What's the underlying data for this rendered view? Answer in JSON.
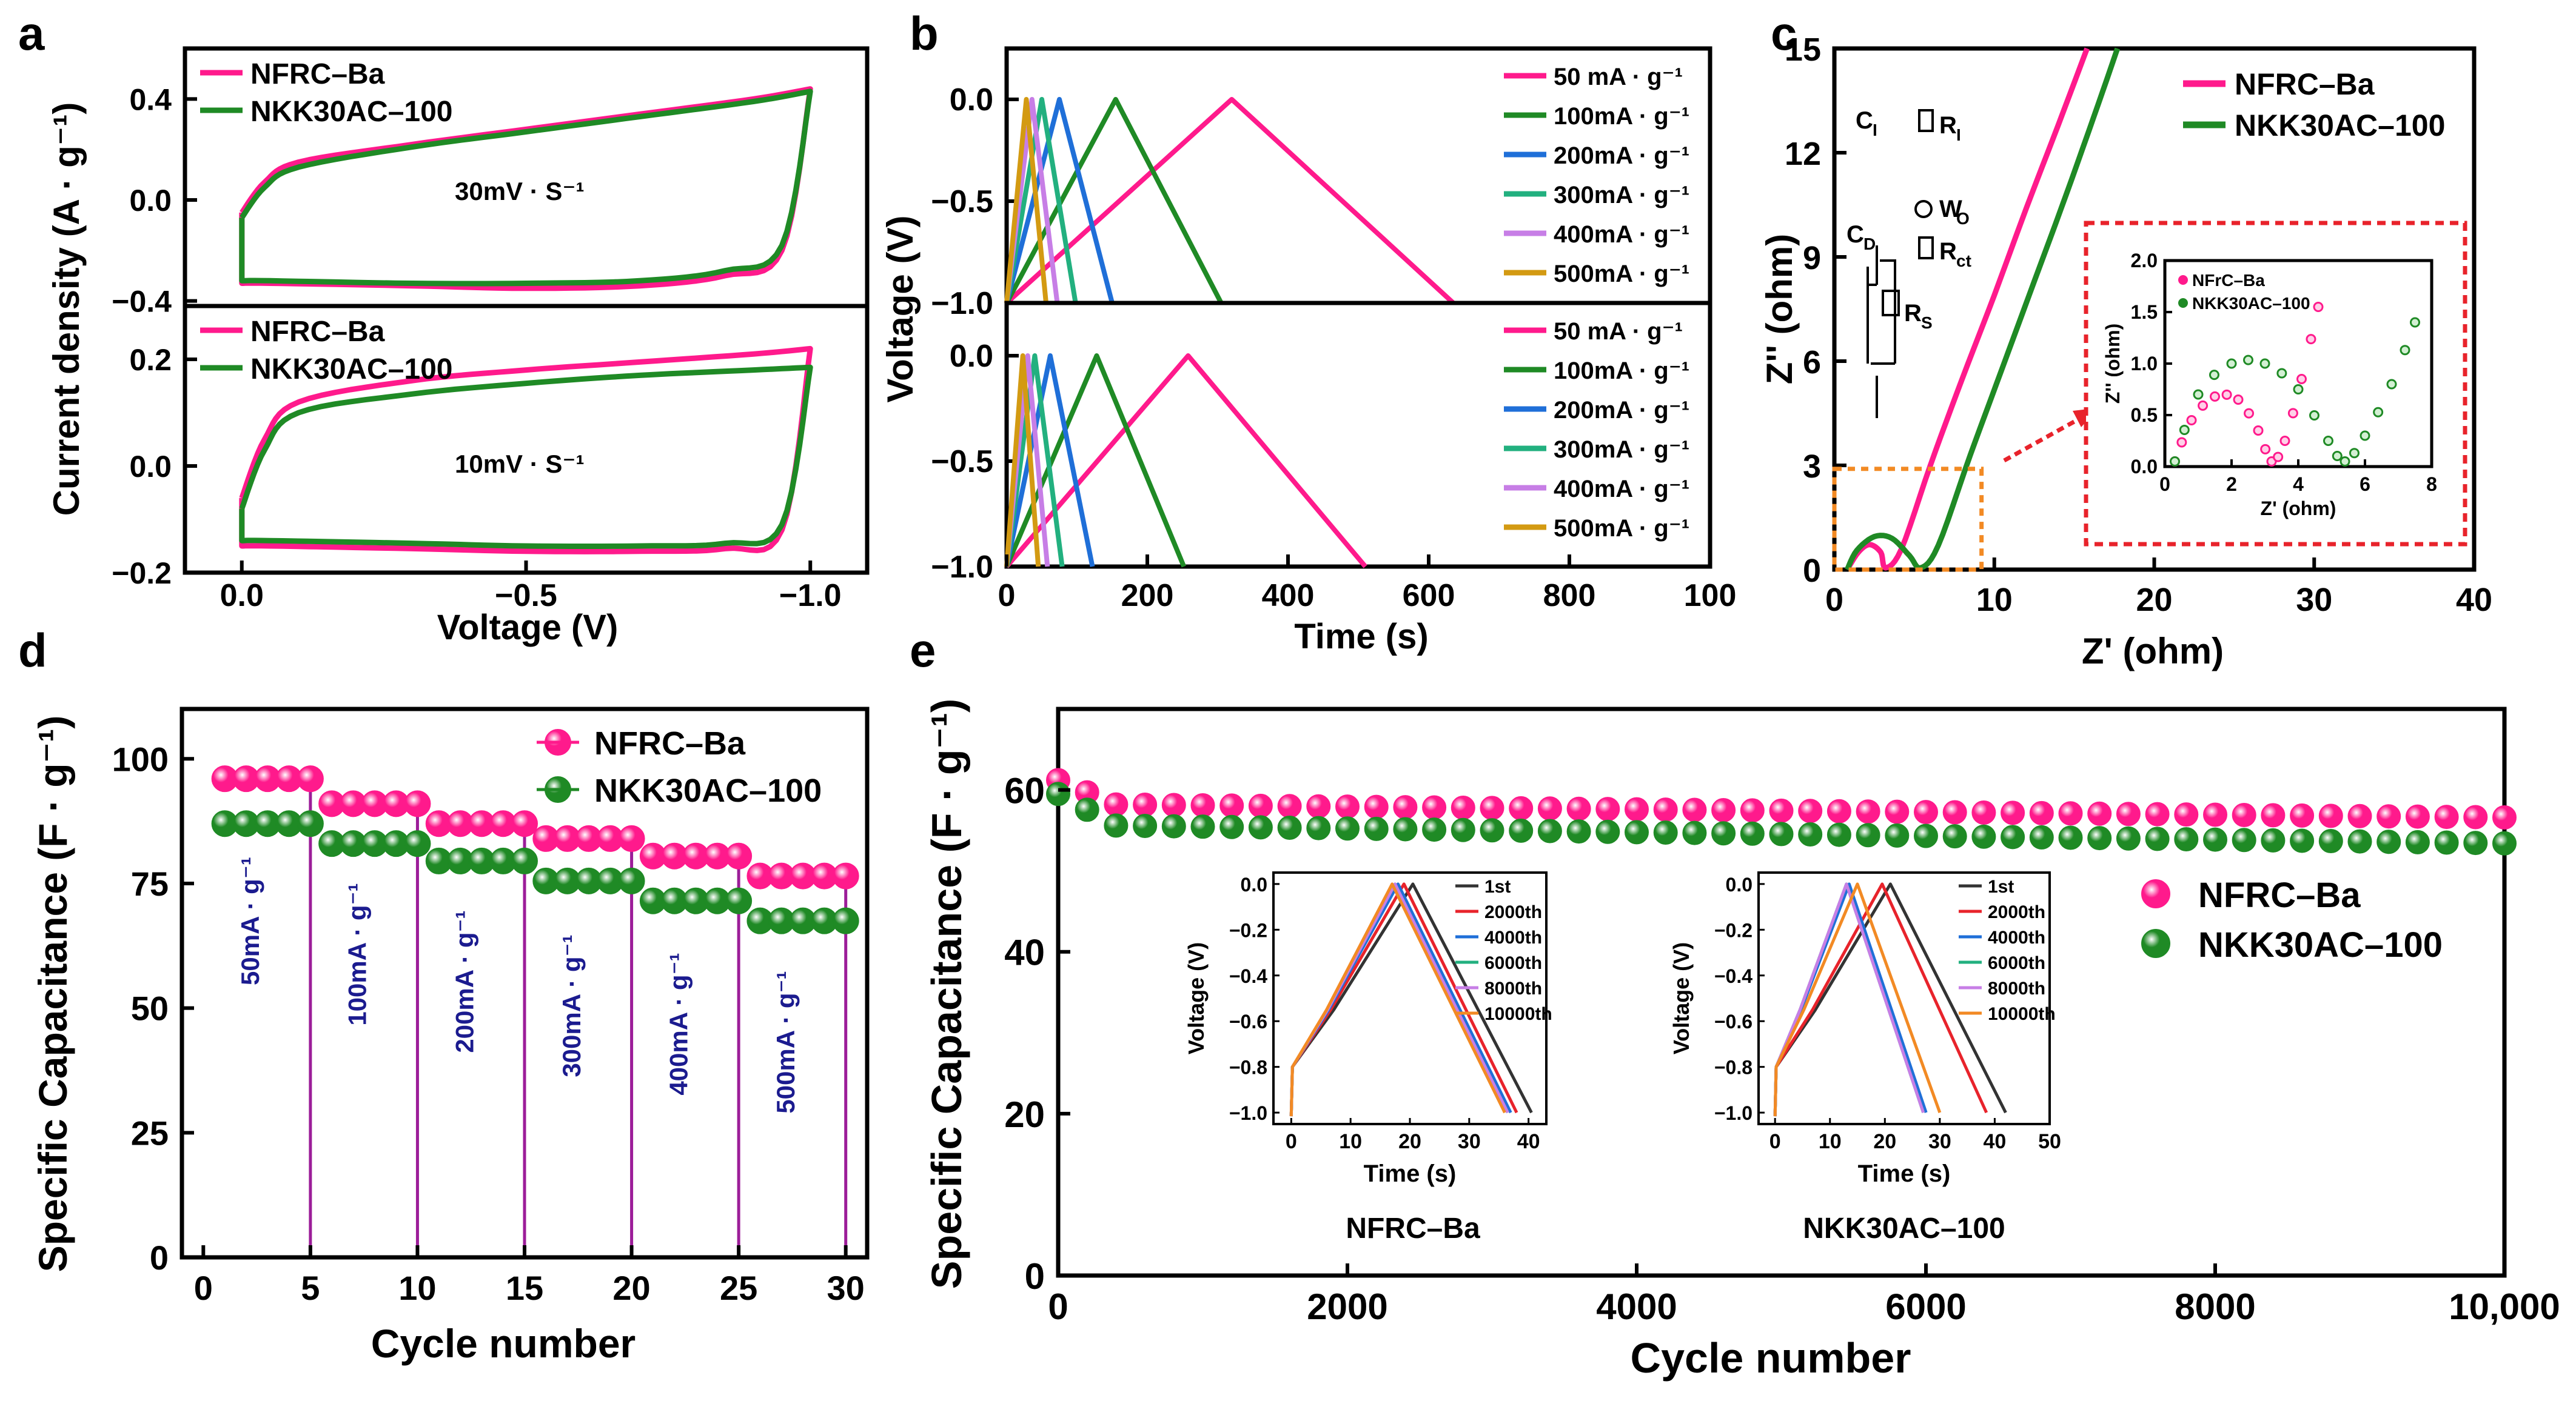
{
  "colors": {
    "pink": "#ff1a8c",
    "green": "#1f8a25",
    "blue": "#1f6fd8",
    "teal": "#22b07f",
    "violet": "#c77ee6",
    "gold": "#d39a12",
    "purple": "#9c1d99",
    "navy": "#1b1b8f",
    "red": "#e8232b",
    "orange": "#f28a24",
    "black": "#333333"
  },
  "chart_data": [
    {
      "panel": "a",
      "type": "line",
      "ylabel": "Current density (A · g⁻¹)",
      "xlabel": "Voltage (V)",
      "xlim": [
        0.1,
        -1.1
      ],
      "x_ticks": [
        "0.0",
        "−0.5",
        "−1.0"
      ],
      "series_names": [
        "NFRC–Ba",
        "NKK30AC–100"
      ],
      "subplots": [
        {
          "position": "top",
          "annotation": "30mV · S⁻¹",
          "ylim": [
            -0.42,
            0.6
          ],
          "y_ticks": [
            "0.4",
            "0.0",
            "−0.4"
          ],
          "series": [
            {
              "name": "NFRC–Ba",
              "upper": [
                [
                  0,
                  -0.05
                ],
                [
                  -0.04,
                  0.07
                ],
                [
                  -0.1,
                  0.15
                ],
                [
                  -0.3,
                  0.22
                ],
                [
                  -0.5,
                  0.28
                ],
                [
                  -0.7,
                  0.34
                ],
                [
                  -0.9,
                  0.4
                ],
                [
                  -1.0,
                  0.44
                ]
              ],
              "lower": [
                [
                  0,
                  -0.33
                ],
                [
                  -0.05,
                  -0.33
                ],
                [
                  -0.3,
                  -0.34
                ],
                [
                  -0.5,
                  -0.35
                ],
                [
                  -0.7,
                  -0.34
                ],
                [
                  -0.85,
                  -0.3
                ],
                [
                  -0.95,
                  -0.2
                ],
                [
                  -1.0,
                  0.44
                ]
              ]
            },
            {
              "name": "NKK30AC–100",
              "upper": [
                [
                  0,
                  -0.07
                ],
                [
                  -0.04,
                  0.05
                ],
                [
                  -0.1,
                  0.13
                ],
                [
                  -0.3,
                  0.21
                ],
                [
                  -0.5,
                  0.27
                ],
                [
                  -0.7,
                  0.33
                ],
                [
                  -0.9,
                  0.39
                ],
                [
                  -1.0,
                  0.43
                ]
              ],
              "lower": [
                [
                  0,
                  -0.32
                ],
                [
                  -0.05,
                  -0.32
                ],
                [
                  -0.3,
                  -0.33
                ],
                [
                  -0.5,
                  -0.33
                ],
                [
                  -0.7,
                  -0.32
                ],
                [
                  -0.85,
                  -0.28
                ],
                [
                  -0.95,
                  -0.18
                ],
                [
                  -1.0,
                  0.43
                ]
              ]
            }
          ]
        },
        {
          "position": "bottom",
          "annotation": "10mV · S⁻¹",
          "ylim": [
            -0.2,
            0.3
          ],
          "y_ticks": [
            "0.2",
            "0.0",
            "−0.2"
          ],
          "series": [
            {
              "name": "NFRC–Ba",
              "upper": [
                [
                  0,
                  -0.06
                ],
                [
                  -0.04,
                  0.05
                ],
                [
                  -0.1,
                  0.12
                ],
                [
                  -0.3,
                  0.16
                ],
                [
                  -0.5,
                  0.18
                ],
                [
                  -0.7,
                  0.195
                ],
                [
                  -0.9,
                  0.21
                ],
                [
                  -1.0,
                  0.22
                ]
              ],
              "lower": [
                [
                  0,
                  -0.15
                ],
                [
                  -0.05,
                  -0.15
                ],
                [
                  -0.3,
                  -0.155
                ],
                [
                  -0.5,
                  -0.16
                ],
                [
                  -0.7,
                  -0.16
                ],
                [
                  -0.85,
                  -0.155
                ],
                [
                  -0.95,
                  -0.12
                ],
                [
                  -1.0,
                  0.22
                ]
              ]
            },
            {
              "name": "NKK30AC–100",
              "upper": [
                [
                  0,
                  -0.08
                ],
                [
                  -0.04,
                  0.03
                ],
                [
                  -0.1,
                  0.1
                ],
                [
                  -0.3,
                  0.135
                ],
                [
                  -0.5,
                  0.155
                ],
                [
                  -0.7,
                  0.17
                ],
                [
                  -0.9,
                  0.18
                ],
                [
                  -1.0,
                  0.185
                ]
              ],
              "lower": [
                [
                  0,
                  -0.14
                ],
                [
                  -0.05,
                  -0.14
                ],
                [
                  -0.3,
                  -0.145
                ],
                [
                  -0.5,
                  -0.15
                ],
                [
                  -0.7,
                  -0.15
                ],
                [
                  -0.85,
                  -0.145
                ],
                [
                  -0.95,
                  -0.11
                ],
                [
                  -1.0,
                  0.185
                ]
              ]
            }
          ]
        }
      ]
    },
    {
      "panel": "b",
      "type": "line",
      "ylabel": "Voltage (V)",
      "xlabel": "Time (s)",
      "xlim": [
        0,
        1000
      ],
      "x_ticks": [
        "0",
        "200",
        "400",
        "600",
        "800",
        "100"
      ],
      "current_labels": [
        "50  mA · g⁻¹",
        "100mA · g⁻¹",
        "200mA · g⁻¹",
        "300mA · g⁻¹",
        "400mA · g⁻¹",
        "500mA · g⁻¹"
      ],
      "subplots": [
        {
          "position": "top",
          "ylim": [
            -1.0,
            0.25
          ],
          "y_ticks": [
            "0.0",
            "−0.5",
            "−1.0"
          ],
          "series": [
            {
              "name": "50  mA · g⁻¹",
              "peak": 320,
              "end": 635
            },
            {
              "name": "100mA · g⁻¹",
              "peak": 155,
              "end": 305
            },
            {
              "name": "200mA · g⁻¹",
              "peak": 75,
              "end": 150
            },
            {
              "name": "300mA · g⁻¹",
              "peak": 50,
              "end": 98
            },
            {
              "name": "400mA · g⁻¹",
              "peak": 36,
              "end": 72
            },
            {
              "name": "500mA · g⁻¹",
              "peak": 28,
              "end": 56
            }
          ]
        },
        {
          "position": "bottom",
          "ylim": [
            -1.0,
            0.25
          ],
          "y_ticks": [
            "0.0",
            "−0.5",
            "−1.0"
          ],
          "series": [
            {
              "name": "50  mA · g⁻¹",
              "peak": 258,
              "end": 510
            },
            {
              "name": "100mA · g⁻¹",
              "peak": 128,
              "end": 252
            },
            {
              "name": "200mA · g⁻¹",
              "peak": 62,
              "end": 122
            },
            {
              "name": "300mA · g⁻¹",
              "peak": 40,
              "end": 79
            },
            {
              "name": "400mA · g⁻¹",
              "peak": 30,
              "end": 58
            },
            {
              "name": "500mA · g⁻¹",
              "peak": 23,
              "end": 45
            }
          ]
        }
      ]
    },
    {
      "panel": "c",
      "type": "line",
      "title": "",
      "xlabel": "Z' (ohm)",
      "ylabel": "Z'' (ohm)",
      "xlim": [
        0,
        40
      ],
      "ylim": [
        0,
        15
      ],
      "x_ticks": [
        "0",
        "10",
        "20",
        "30",
        "40"
      ],
      "y_ticks": [
        "0",
        "3",
        "6",
        "9",
        "12",
        "15"
      ],
      "series": [
        {
          "name": "NFRC–Ba",
          "points": [
            [
              0.8,
              0
            ],
            [
              1.5,
              0.5
            ],
            [
              2.2,
              0.72
            ],
            [
              2.9,
              0.5
            ],
            [
              3.2,
              0.05
            ],
            [
              4.2,
              0.6
            ],
            [
              6,
              3
            ],
            [
              8,
              5.5
            ],
            [
              10,
              7.9
            ],
            [
              12,
              10.4
            ],
            [
              14,
              12.8
            ],
            [
              15.8,
              15
            ]
          ]
        },
        {
          "name": "NKK30AC–100",
          "points": [
            [
              0.8,
              0
            ],
            [
              1.4,
              0.55
            ],
            [
              2.5,
              0.95
            ],
            [
              3.6,
              0.9
            ],
            [
              4.7,
              0.4
            ],
            [
              5.4,
              0.05
            ],
            [
              6.5,
              0.7
            ],
            [
              8.5,
              3.3
            ],
            [
              10.5,
              5.8
            ],
            [
              12.5,
              8.3
            ],
            [
              14.5,
              10.8
            ],
            [
              16.5,
              13.4
            ],
            [
              17.7,
              15
            ]
          ]
        }
      ],
      "circuit_labels": {
        "ci": "C",
        "ci_sub": "I",
        "ri": "R",
        "ri_sub": "I",
        "cd": "C",
        "cd_sub": "D",
        "rct": "R",
        "rct_sub": "ct",
        "wo": "W",
        "wo_sub": "O",
        "rs": "R",
        "rs_sub": "S"
      },
      "inset": {
        "xlim": [
          0,
          8
        ],
        "ylim": [
          0,
          2.0
        ],
        "x_ticks": [
          "0",
          "2",
          "4",
          "6",
          "8"
        ],
        "y_ticks": [
          "0.0",
          "0.5",
          "1.0",
          "1.5",
          "2.0"
        ],
        "xlabel": "Z' (ohm)",
        "ylabel": "Z'' (ohm)",
        "legend": [
          "NFrC–Ba",
          "NKK30AC–100"
        ],
        "series": [
          {
            "name": "NFrC–Ba",
            "points": [
              [
                0.3,
                0.05
              ],
              [
                0.8,
                0.45
              ],
              [
                1.5,
                0.68
              ],
              [
                2.2,
                0.65
              ],
              [
                2.8,
                0.35
              ],
              [
                3.2,
                0.05
              ],
              [
                3.6,
                0.25
              ],
              [
                4.1,
                0.85
              ],
              [
                4.6,
                1.55
              ]
            ]
          },
          {
            "name": "NKK30AC–100",
            "points": [
              [
                0.3,
                0.05
              ],
              [
                1.0,
                0.7
              ],
              [
                2.0,
                1.0
              ],
              [
                3.0,
                1.0
              ],
              [
                4.0,
                0.75
              ],
              [
                4.9,
                0.25
              ],
              [
                5.4,
                0.05
              ],
              [
                6.0,
                0.3
              ],
              [
                6.8,
                0.8
              ],
              [
                7.5,
                1.4
              ]
            ]
          }
        ]
      }
    },
    {
      "panel": "d",
      "type": "scatter",
      "xlabel": "Cycle number",
      "ylabel": "Specific Capacitance (F · g⁻¹)",
      "xlim": [
        -1,
        31
      ],
      "ylim": [
        0,
        110
      ],
      "x_ticks": [
        "0",
        "5",
        "10",
        "15",
        "20",
        "25",
        "30"
      ],
      "y_ticks": [
        "0",
        "25",
        "50",
        "75",
        "100"
      ],
      "series": [
        {
          "name": "NFRC–Ba",
          "levels": [
            96,
            91,
            87,
            84,
            80.5,
            76.5
          ]
        },
        {
          "name": "NKK30AC–100",
          "levels": [
            87,
            83,
            79.5,
            75.5,
            71.5,
            67.5
          ]
        }
      ],
      "current_labels": [
        "50mA · g⁻¹",
        "100mA · g⁻¹",
        "200mA · g⁻¹",
        "300mA · g⁻¹",
        "400mA · g⁻¹",
        "500mA · g⁻¹"
      ],
      "dividers": [
        5,
        10,
        15,
        20,
        25,
        30
      ]
    },
    {
      "panel": "e",
      "type": "scatter",
      "xlabel": "Cycle number",
      "ylabel": "Specific Capacitance (F · g⁻¹)",
      "xlim": [
        0,
        10000
      ],
      "ylim": [
        0,
        70
      ],
      "x_ticks": [
        "0",
        "2000",
        "4000",
        "6000",
        "8000",
        "10,000"
      ],
      "y_ticks": [
        "0",
        "20",
        "40",
        "60"
      ],
      "legend": [
        "NFRC–Ba",
        "NKK30AC–100"
      ],
      "series": [
        {
          "name": "NFRC–Ba",
          "start": [
            0,
            61.2
          ],
          "plateau_start": 58.2,
          "plateau_end": 56.6
        },
        {
          "name": "NKK30AC–100",
          "start": [
            0,
            59.5
          ],
          "plateau_start": 55.6,
          "plateau_end": 53.4
        }
      ],
      "insets": [
        {
          "caption": "NFRC–Ba",
          "xlim": [
            -3,
            43
          ],
          "x_ticks": [
            "0",
            "10",
            "20",
            "30",
            "40"
          ],
          "ylim": [
            -1.05,
            0.05
          ],
          "y_ticks": [
            "0.0",
            "−0.2",
            "−0.4",
            "−0.6",
            "−0.8",
            "−1.0"
          ],
          "xlabel": "Time (s)",
          "ylabel": "Voltage (V)",
          "cycles": [
            {
              "name": "1st",
              "peak": 20.5,
              "end": 40.5
            },
            {
              "name": "2000th",
              "peak": 19,
              "end": 38
            },
            {
              "name": "4000th",
              "peak": 18,
              "end": 37
            },
            {
              "name": "6000th",
              "peak": 17.5,
              "end": 36.5
            },
            {
              "name": "8000th",
              "peak": 17.5,
              "end": 36.5
            },
            {
              "name": "10000th",
              "peak": 17,
              "end": 36
            }
          ]
        },
        {
          "caption": "NKK30AC–100",
          "xlim": [
            -3,
            50
          ],
          "x_ticks": [
            "0",
            "10",
            "20",
            "30",
            "40",
            "50"
          ],
          "ylim": [
            -1.05,
            0.05
          ],
          "y_ticks": [
            "0.0",
            "−0.2",
            "−0.4",
            "−0.6",
            "−0.8",
            "−1.0"
          ],
          "xlabel": "Time (s)",
          "ylabel": "Voltage (V)",
          "cycles": [
            {
              "name": "1st",
              "peak": 21,
              "end": 42
            },
            {
              "name": "2000th",
              "peak": 19.5,
              "end": 38.5
            },
            {
              "name": "4000th",
              "peak": 13.5,
              "end": 27.5
            },
            {
              "name": "6000th",
              "peak": 13,
              "end": 27
            },
            {
              "name": "8000th",
              "peak": 13,
              "end": 27
            },
            {
              "name": "10000th",
              "peak": 15,
              "end": 30
            }
          ]
        }
      ]
    }
  ],
  "panel_letters": [
    "a",
    "b",
    "c",
    "d",
    "e"
  ]
}
